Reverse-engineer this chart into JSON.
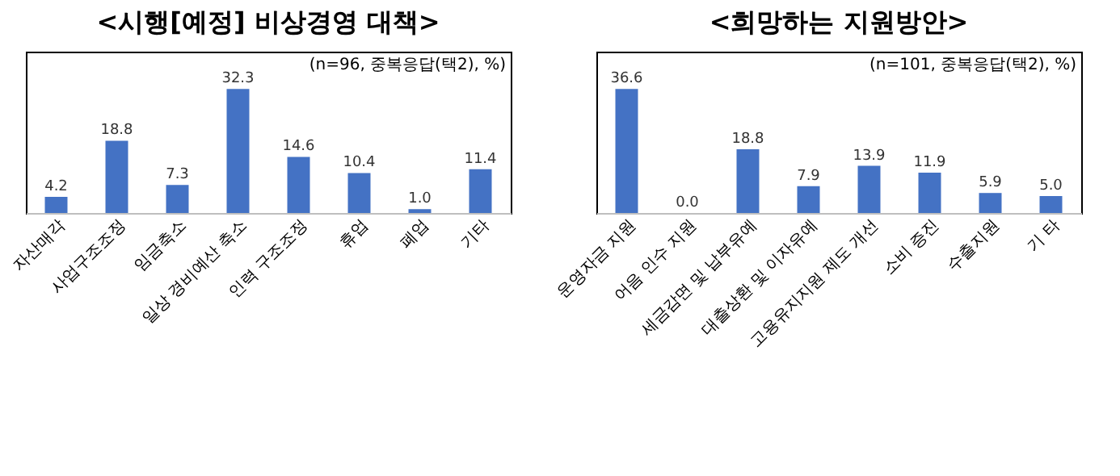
{
  "chart_data": [
    {
      "type": "bar",
      "title": "<시행[예정] 비상경영 대책>",
      "annotations": [
        "(n=96, 중복응답(택2), %)"
      ],
      "categories": [
        "자산매각",
        "사업구조조정",
        "임금축소",
        "일상 경비예산 축소",
        "인력 구조조정",
        "휴업",
        "폐업",
        "기타"
      ],
      "values": [
        4.2,
        18.8,
        7.3,
        32.3,
        14.6,
        10.4,
        1.0,
        11.4
      ],
      "value_labels": [
        "4.2",
        "18.8",
        "7.3",
        "32.3",
        "14.6",
        "10.4",
        "1.0",
        "11.4"
      ],
      "color": "#4472c4"
    },
    {
      "type": "bar",
      "title": "<희망하는 지원방안>",
      "annotations": [
        "(n=101, 중복응답(택2), %)"
      ],
      "categories": [
        "운영자금 지원",
        "어음 인수 지원",
        "세금감면 및 납부유예",
        "대출상환 및 이자유예",
        "고용유지지원 제도 개선",
        "소비 증진",
        "수출지원",
        "기 타"
      ],
      "values": [
        36.6,
        0.0,
        18.8,
        7.9,
        13.9,
        11.9,
        5.9,
        5.0
      ],
      "value_labels": [
        "36.6",
        "0.0",
        "18.8",
        "7.9",
        "13.9",
        "11.9",
        "5.9",
        "5.0"
      ],
      "color": "#4472c4"
    }
  ]
}
